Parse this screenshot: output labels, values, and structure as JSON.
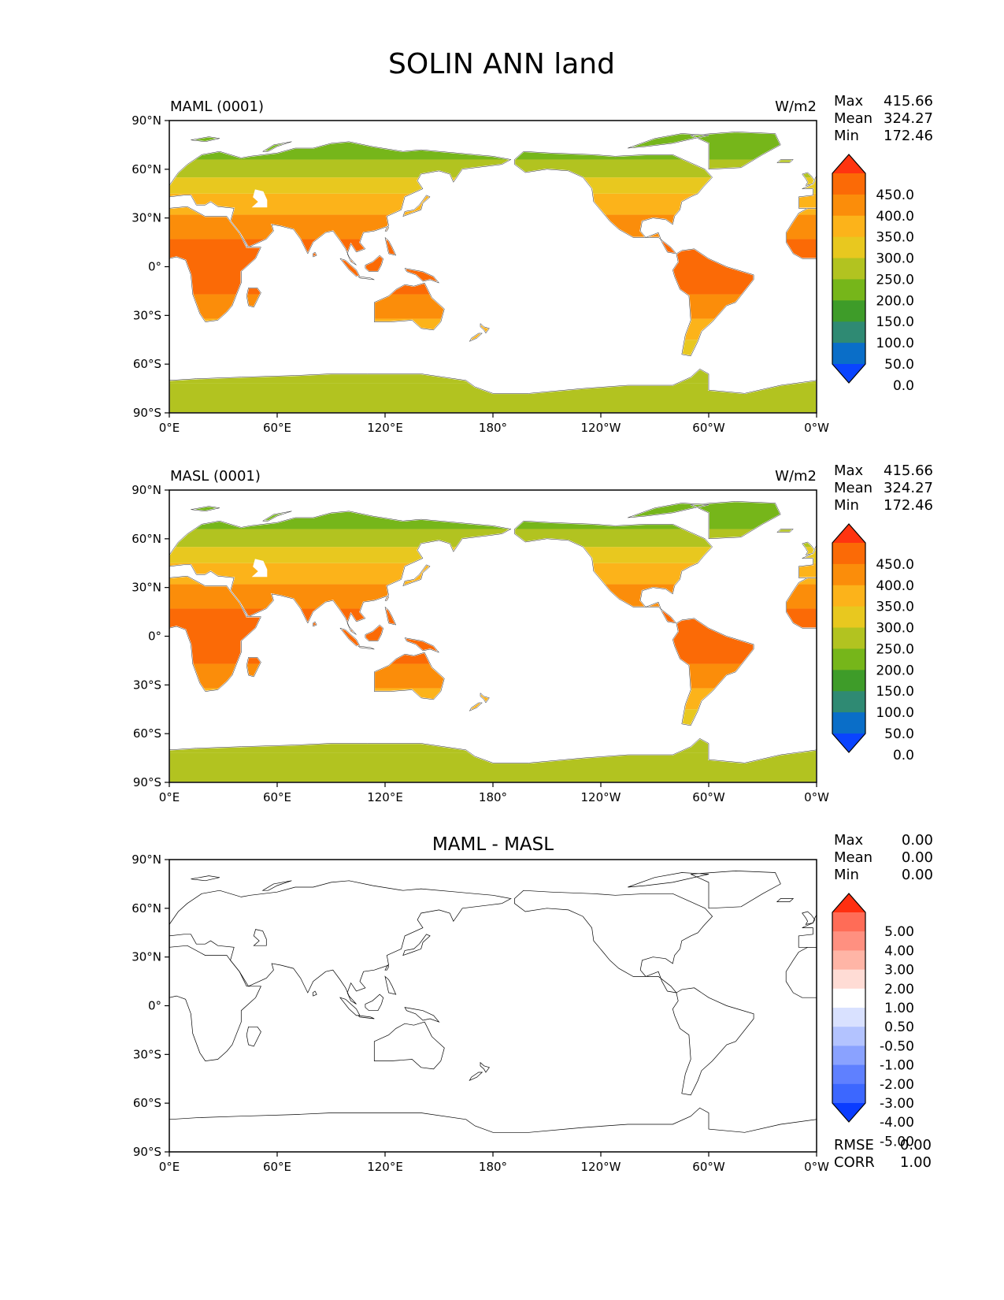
{
  "title": "SOLIN ANN land",
  "lat_ticks": [
    "90°N",
    "60°N",
    "30°N",
    "0°",
    "30°S",
    "60°S",
    "90°S"
  ],
  "lon_ticks": [
    "0°E",
    "60°E",
    "120°E",
    "180°",
    "120°W",
    "60°W",
    "0°W"
  ],
  "stat_labels": {
    "max": "Max",
    "mean": "Mean",
    "min": "Min",
    "rmse": "RMSE",
    "corr": "CORR"
  },
  "palettes": {
    "solin": [
      "#0a44ff",
      "#0a6ec8",
      "#2f8a73",
      "#3e9c29",
      "#76b61a",
      "#b2c320",
      "#e8c81f",
      "#fcb31a",
      "#fb8d0a",
      "#fb6a06",
      "#ff3410"
    ],
    "diff": [
      "#0a3cff",
      "#3c67ff",
      "#5f80ff",
      "#8aa2ff",
      "#b3c3ff",
      "#d9e1ff",
      "#ffffff",
      "#ffdcd5",
      "#ffb5a6",
      "#ff9080",
      "#ff6c57",
      "#ff2f10"
    ]
  },
  "panels": [
    {
      "left_title": "MAML (0001)",
      "center_title": "",
      "units": "W/m2",
      "stats": {
        "max": "415.66",
        "mean": "324.27",
        "min": "172.46"
      },
      "colorbar": {
        "palette": "solin",
        "labels": [
          "450.0",
          "400.0",
          "350.0",
          "300.0",
          "250.0",
          "200.0",
          "150.0",
          "100.0",
          "50.0",
          "0.0"
        ]
      },
      "filled": true
    },
    {
      "left_title": "MASL (0001)",
      "center_title": "",
      "units": "W/m2",
      "stats": {
        "max": "415.66",
        "mean": "324.27",
        "min": "172.46"
      },
      "colorbar": {
        "palette": "solin",
        "labels": [
          "450.0",
          "400.0",
          "350.0",
          "300.0",
          "250.0",
          "200.0",
          "150.0",
          "100.0",
          "50.0",
          "0.0"
        ]
      },
      "filled": true
    },
    {
      "left_title": "",
      "center_title": "MAML - MASL",
      "units": "",
      "stats": {
        "max": "0.00",
        "mean": "0.00",
        "min": "0.00"
      },
      "extra_stats": {
        "rmse": "0.00",
        "corr": "1.00"
      },
      "colorbar": {
        "palette": "diff",
        "labels": [
          "5.00",
          "4.00",
          "3.00",
          "2.00",
          "1.00",
          "0.50",
          "-0.50",
          "-1.00",
          "-2.00",
          "-3.00",
          "-4.00",
          "-5.00"
        ]
      },
      "filled": false
    }
  ]
}
